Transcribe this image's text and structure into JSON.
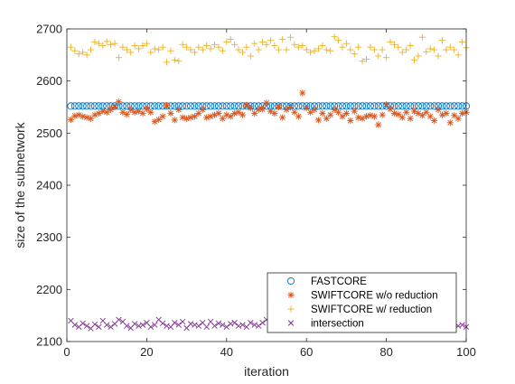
{
  "chart_data": {
    "type": "scatter",
    "xlabel": "iteration",
    "ylabel": "size of the subnetwork",
    "xlim": [
      0,
      100
    ],
    "ylim": [
      2100,
      2700
    ],
    "xticks": [
      "0",
      "20",
      "40",
      "60",
      "80",
      "100"
    ],
    "yticks": [
      "2100",
      "2200",
      "2300",
      "2400",
      "2500",
      "2600",
      "2700"
    ],
    "legend_position": "bottom-right",
    "series": [
      {
        "name": "FASTCORE",
        "marker": "circle",
        "color": "#0072BD",
        "x": [
          1,
          2,
          3,
          4,
          5,
          6,
          7,
          8,
          9,
          10,
          11,
          12,
          13,
          14,
          15,
          16,
          17,
          18,
          19,
          20,
          21,
          22,
          23,
          24,
          25,
          26,
          27,
          28,
          29,
          30,
          31,
          32,
          33,
          34,
          35,
          36,
          37,
          38,
          39,
          40,
          41,
          42,
          43,
          44,
          45,
          46,
          47,
          48,
          49,
          50,
          51,
          52,
          53,
          54,
          55,
          56,
          57,
          58,
          59,
          60,
          61,
          62,
          63,
          64,
          65,
          66,
          67,
          68,
          69,
          70,
          71,
          72,
          73,
          74,
          75,
          76,
          77,
          78,
          79,
          80,
          81,
          82,
          83,
          84,
          85,
          86,
          87,
          88,
          89,
          90,
          91,
          92,
          93,
          94,
          95,
          96,
          97,
          98,
          99,
          100
        ],
        "y": [
          2552,
          2552,
          2552,
          2552,
          2552,
          2552,
          2552,
          2552,
          2552,
          2552,
          2552,
          2552,
          2552,
          2552,
          2552,
          2552,
          2552,
          2552,
          2552,
          2552,
          2552,
          2552,
          2552,
          2552,
          2552,
          2552,
          2552,
          2552,
          2552,
          2552,
          2552,
          2552,
          2552,
          2552,
          2552,
          2552,
          2552,
          2552,
          2552,
          2552,
          2552,
          2552,
          2552,
          2552,
          2552,
          2552,
          2552,
          2552,
          2552,
          2552,
          2552,
          2552,
          2552,
          2552,
          2552,
          2552,
          2552,
          2552,
          2552,
          2552,
          2552,
          2552,
          2552,
          2552,
          2552,
          2552,
          2552,
          2552,
          2552,
          2552,
          2552,
          2552,
          2552,
          2552,
          2552,
          2552,
          2552,
          2552,
          2552,
          2552,
          2552,
          2552,
          2552,
          2552,
          2552,
          2552,
          2552,
          2552,
          2552,
          2552,
          2552,
          2552,
          2552,
          2552,
          2552,
          2552,
          2552,
          2552,
          2552,
          2552
        ]
      },
      {
        "name": "SWIFTCORE w/o reduction",
        "marker": "asterisk",
        "color": "#D95319",
        "x": [
          1,
          2,
          3,
          4,
          5,
          6,
          7,
          8,
          9,
          10,
          11,
          12,
          13,
          14,
          15,
          16,
          17,
          18,
          19,
          20,
          21,
          22,
          23,
          24,
          25,
          26,
          27,
          28,
          29,
          30,
          31,
          32,
          33,
          34,
          35,
          36,
          37,
          38,
          39,
          40,
          41,
          42,
          43,
          44,
          45,
          46,
          47,
          48,
          49,
          50,
          51,
          52,
          53,
          54,
          55,
          56,
          57,
          58,
          59,
          60,
          61,
          62,
          63,
          64,
          65,
          66,
          67,
          68,
          69,
          70,
          71,
          72,
          73,
          74,
          75,
          76,
          77,
          78,
          79,
          80,
          81,
          82,
          83,
          84,
          85,
          86,
          87,
          88,
          89,
          90,
          91,
          92,
          93,
          94,
          95,
          96,
          97,
          98,
          99,
          100
        ],
        "y": [
          2526,
          2533,
          2535,
          2532,
          2530,
          2528,
          2535,
          2538,
          2542,
          2540,
          2545,
          2550,
          2560,
          2540,
          2536,
          2545,
          2540,
          2542,
          2538,
          2546,
          2540,
          2522,
          2526,
          2532,
          2553,
          2538,
          2525,
          2545,
          2530,
          2528,
          2530,
          2532,
          2538,
          2545,
          2530,
          2532,
          2535,
          2538,
          2528,
          2535,
          2532,
          2538,
          2540,
          2535,
          2554,
          2548,
          2538,
          2545,
          2546,
          2558,
          2542,
          2538,
          2550,
          2530,
          2545,
          2550,
          2540,
          2532,
          2577,
          2548,
          2540,
          2545,
          2525,
          2538,
          2528,
          2535,
          2545,
          2540,
          2532,
          2538,
          2524,
          2542,
          2530,
          2528,
          2532,
          2534,
          2532,
          2516,
          2535,
          2555,
          2546,
          2538,
          2536,
          2530,
          2540,
          2528,
          2542,
          2538,
          2534,
          2540,
          2532,
          2524,
          2545,
          2535,
          2538,
          2520,
          2534,
          2528,
          2538,
          2540
        ]
      },
      {
        "name": "SWIFTCORE w/ reduction",
        "marker": "plus",
        "color": "#EDB120",
        "x": [
          1,
          2,
          3,
          4,
          5,
          6,
          7,
          8,
          9,
          10,
          11,
          12,
          13,
          14,
          15,
          16,
          17,
          18,
          19,
          20,
          21,
          22,
          23,
          24,
          25,
          26,
          27,
          28,
          29,
          30,
          31,
          32,
          33,
          34,
          35,
          36,
          37,
          38,
          39,
          40,
          41,
          42,
          43,
          44,
          45,
          46,
          47,
          48,
          49,
          50,
          51,
          52,
          53,
          54,
          55,
          56,
          57,
          58,
          59,
          60,
          61,
          62,
          63,
          64,
          65,
          66,
          67,
          68,
          69,
          70,
          71,
          72,
          73,
          74,
          75,
          76,
          77,
          78,
          79,
          80,
          81,
          82,
          83,
          84,
          85,
          86,
          87,
          88,
          89,
          90,
          91,
          92,
          93,
          94,
          95,
          96,
          97,
          98,
          99,
          100
        ],
        "y": [
          2665,
          2658,
          2652,
          2655,
          2650,
          2660,
          2675,
          2672,
          2668,
          2676,
          2670,
          2672,
          2645,
          2665,
          2660,
          2655,
          2668,
          2662,
          2668,
          2672,
          2655,
          2662,
          2660,
          2665,
          2636,
          2658,
          2640,
          2638,
          2670,
          2665,
          2660,
          2655,
          2665,
          2660,
          2668,
          2662,
          2670,
          2665,
          2658,
          2675,
          2680,
          2670,
          2660,
          2655,
          2665,
          2648,
          2672,
          2660,
          2675,
          2670,
          2678,
          2668,
          2660,
          2680,
          2660,
          2684,
          2670,
          2665,
          2668,
          2660,
          2655,
          2658,
          2662,
          2668,
          2660,
          2658,
          2685,
          2678,
          2665,
          2672,
          2660,
          2652,
          2665,
          2638,
          2642,
          2665,
          2660,
          2648,
          2660,
          2645,
          2675,
          2670,
          2665,
          2655,
          2660,
          2668,
          2640,
          2648,
          2684,
          2656,
          2662,
          2660,
          2648,
          2678,
          2660,
          2665,
          2660,
          2650,
          2675,
          2664
        ]
      },
      {
        "name": "intersection",
        "marker": "cross",
        "color": "#7E2F8E",
        "x": [
          1,
          2,
          3,
          4,
          5,
          6,
          7,
          8,
          9,
          10,
          11,
          12,
          13,
          14,
          15,
          16,
          17,
          18,
          19,
          20,
          21,
          22,
          23,
          24,
          25,
          26,
          27,
          28,
          29,
          30,
          31,
          32,
          33,
          34,
          35,
          36,
          37,
          38,
          39,
          40,
          41,
          42,
          43,
          44,
          45,
          46,
          47,
          48,
          49,
          50,
          51,
          52,
          53,
          54,
          55,
          56,
          57,
          58,
          59,
          60,
          61,
          62,
          63,
          64,
          65,
          66,
          67,
          68,
          69,
          70,
          71,
          72,
          73,
          74,
          75,
          76,
          77,
          78,
          79,
          80,
          81,
          82,
          83,
          84,
          85,
          86,
          87,
          88,
          89,
          90,
          91,
          92,
          93,
          94,
          95,
          96,
          97,
          98,
          99,
          100
        ],
        "y": [
          2140,
          2132,
          2128,
          2135,
          2130,
          2125,
          2133,
          2128,
          2140,
          2132,
          2128,
          2134,
          2142,
          2138,
          2130,
          2126,
          2134,
          2130,
          2132,
          2136,
          2128,
          2132,
          2142,
          2135,
          2130,
          2128,
          2136,
          2132,
          2138,
          2126,
          2134,
          2132,
          2130,
          2136,
          2128,
          2138,
          2130,
          2135,
          2132,
          2128,
          2134,
          2136,
          2130,
          2132,
          2128,
          2136,
          2132,
          2130,
          2136,
          2142,
          2130,
          2134,
          2128,
          2132,
          2136,
          2130,
          2138,
          2132,
          2128,
          2130,
          2134,
          2132,
          2136,
          2128,
          2130,
          2134,
          2132,
          2138,
          2130,
          2132,
          2128,
          2134,
          2136,
          2130,
          2132,
          2128,
          2134,
          2138,
          2130,
          2132,
          2128,
          2134,
          2136,
          2130,
          2132,
          2128,
          2134,
          2130,
          2132,
          2136,
          2128,
          2134,
          2130,
          2132,
          2136,
          2128,
          2134,
          2130,
          2132,
          2128
        ]
      }
    ]
  }
}
